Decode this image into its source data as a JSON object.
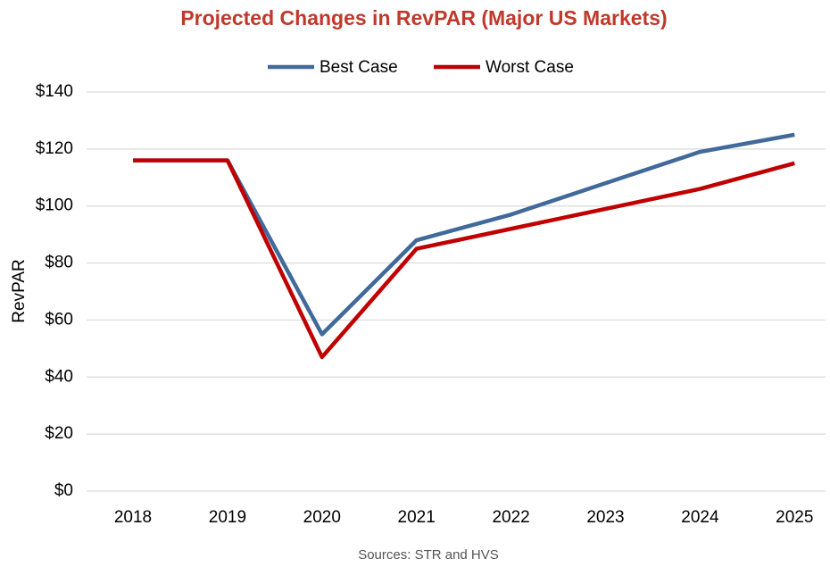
{
  "chart_data": {
    "type": "line",
    "title": "Projected Changes in RevPAR (Major US Markets)",
    "y_label": "RevPAR",
    "source": "Sources:  STR and HVS",
    "categories": [
      "2018",
      "2019",
      "2020",
      "2021",
      "2022",
      "2023",
      "2024",
      "2025"
    ],
    "series": [
      {
        "name": "Best Case",
        "color": "#41699a",
        "values": [
          116,
          116,
          55,
          88,
          97,
          108,
          119,
          125
        ]
      },
      {
        "name": "Worst Case",
        "color": "#c00000",
        "values": [
          116,
          116,
          47,
          85,
          92,
          99,
          106,
          115
        ]
      }
    ],
    "ylim": [
      0,
      140
    ],
    "yticks": [
      {
        "value": 0,
        "label": "$0"
      },
      {
        "value": 20,
        "label": "$20"
      },
      {
        "value": 40,
        "label": "$40"
      },
      {
        "value": 60,
        "label": "$60"
      },
      {
        "value": 80,
        "label": "$80"
      },
      {
        "value": 100,
        "label": "$100"
      },
      {
        "value": 120,
        "label": "$120"
      },
      {
        "value": 140,
        "label": "$140"
      }
    ],
    "grid": true,
    "legend": "top"
  }
}
